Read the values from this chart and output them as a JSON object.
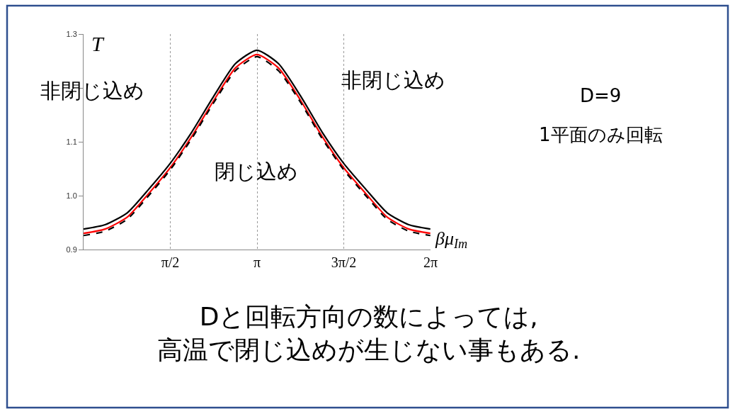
{
  "chart_data": {
    "type": "line",
    "xlabel": "βμ$_{Im}$",
    "ylabel": "T",
    "x": [
      0,
      0.39,
      0.79,
      1.18,
      1.57,
      1.96,
      2.36,
      2.75,
      3.14,
      3.53,
      3.93,
      4.32,
      4.71,
      5.11,
      5.5,
      5.89,
      6.28
    ],
    "series": [
      {
        "color": "#000000",
        "line_style": "solid",
        "values": [
          0.938,
          0.946,
          0.968,
          1.012,
          1.06,
          1.118,
          1.185,
          1.245,
          1.27,
          1.245,
          1.185,
          1.118,
          1.06,
          1.012,
          0.968,
          0.946,
          0.938
        ]
      },
      {
        "color": "#ff0000",
        "line_style": "solid",
        "values": [
          0.93,
          0.938,
          0.96,
          1.004,
          1.052,
          1.11,
          1.177,
          1.237,
          1.262,
          1.237,
          1.177,
          1.11,
          1.052,
          1.004,
          0.96,
          0.938,
          0.93
        ]
      },
      {
        "color": "#000000",
        "line_style": "dashed",
        "values": [
          0.926,
          0.934,
          0.956,
          1.0,
          1.048,
          1.106,
          1.173,
          1.232,
          1.258,
          1.232,
          1.173,
          1.106,
          1.048,
          1.0,
          0.956,
          0.934,
          0.926
        ]
      }
    ],
    "xlim": [
      0,
      6.2832
    ],
    "xticks": [
      {
        "value": 1.5708,
        "label": "π/2"
      },
      {
        "value": 3.1416,
        "label": "π"
      },
      {
        "value": 4.7124,
        "label": "3π/2"
      },
      {
        "value": 6.2832,
        "label": "2π"
      }
    ],
    "ylim": [
      0.9,
      1.3
    ],
    "yticks": [
      {
        "value": 0.9,
        "label": "0.9"
      },
      {
        "value": 1.0,
        "label": "1.0"
      },
      {
        "value": 1.1,
        "label": "1.1"
      },
      {
        "value": 1.2,
        "label": null
      },
      {
        "value": 1.3,
        "label": "1.3"
      }
    ],
    "grid": "x",
    "legend": false,
    "marker": "none",
    "annotations": [
      "非閉じ込め",
      "閉じ込め",
      "非閉じ込め",
      "D=9",
      "1平面のみ回転",
      "Dと回転方向の数によっては,\n高温で閉じ込めが生じない事もある."
    ]
  }
}
